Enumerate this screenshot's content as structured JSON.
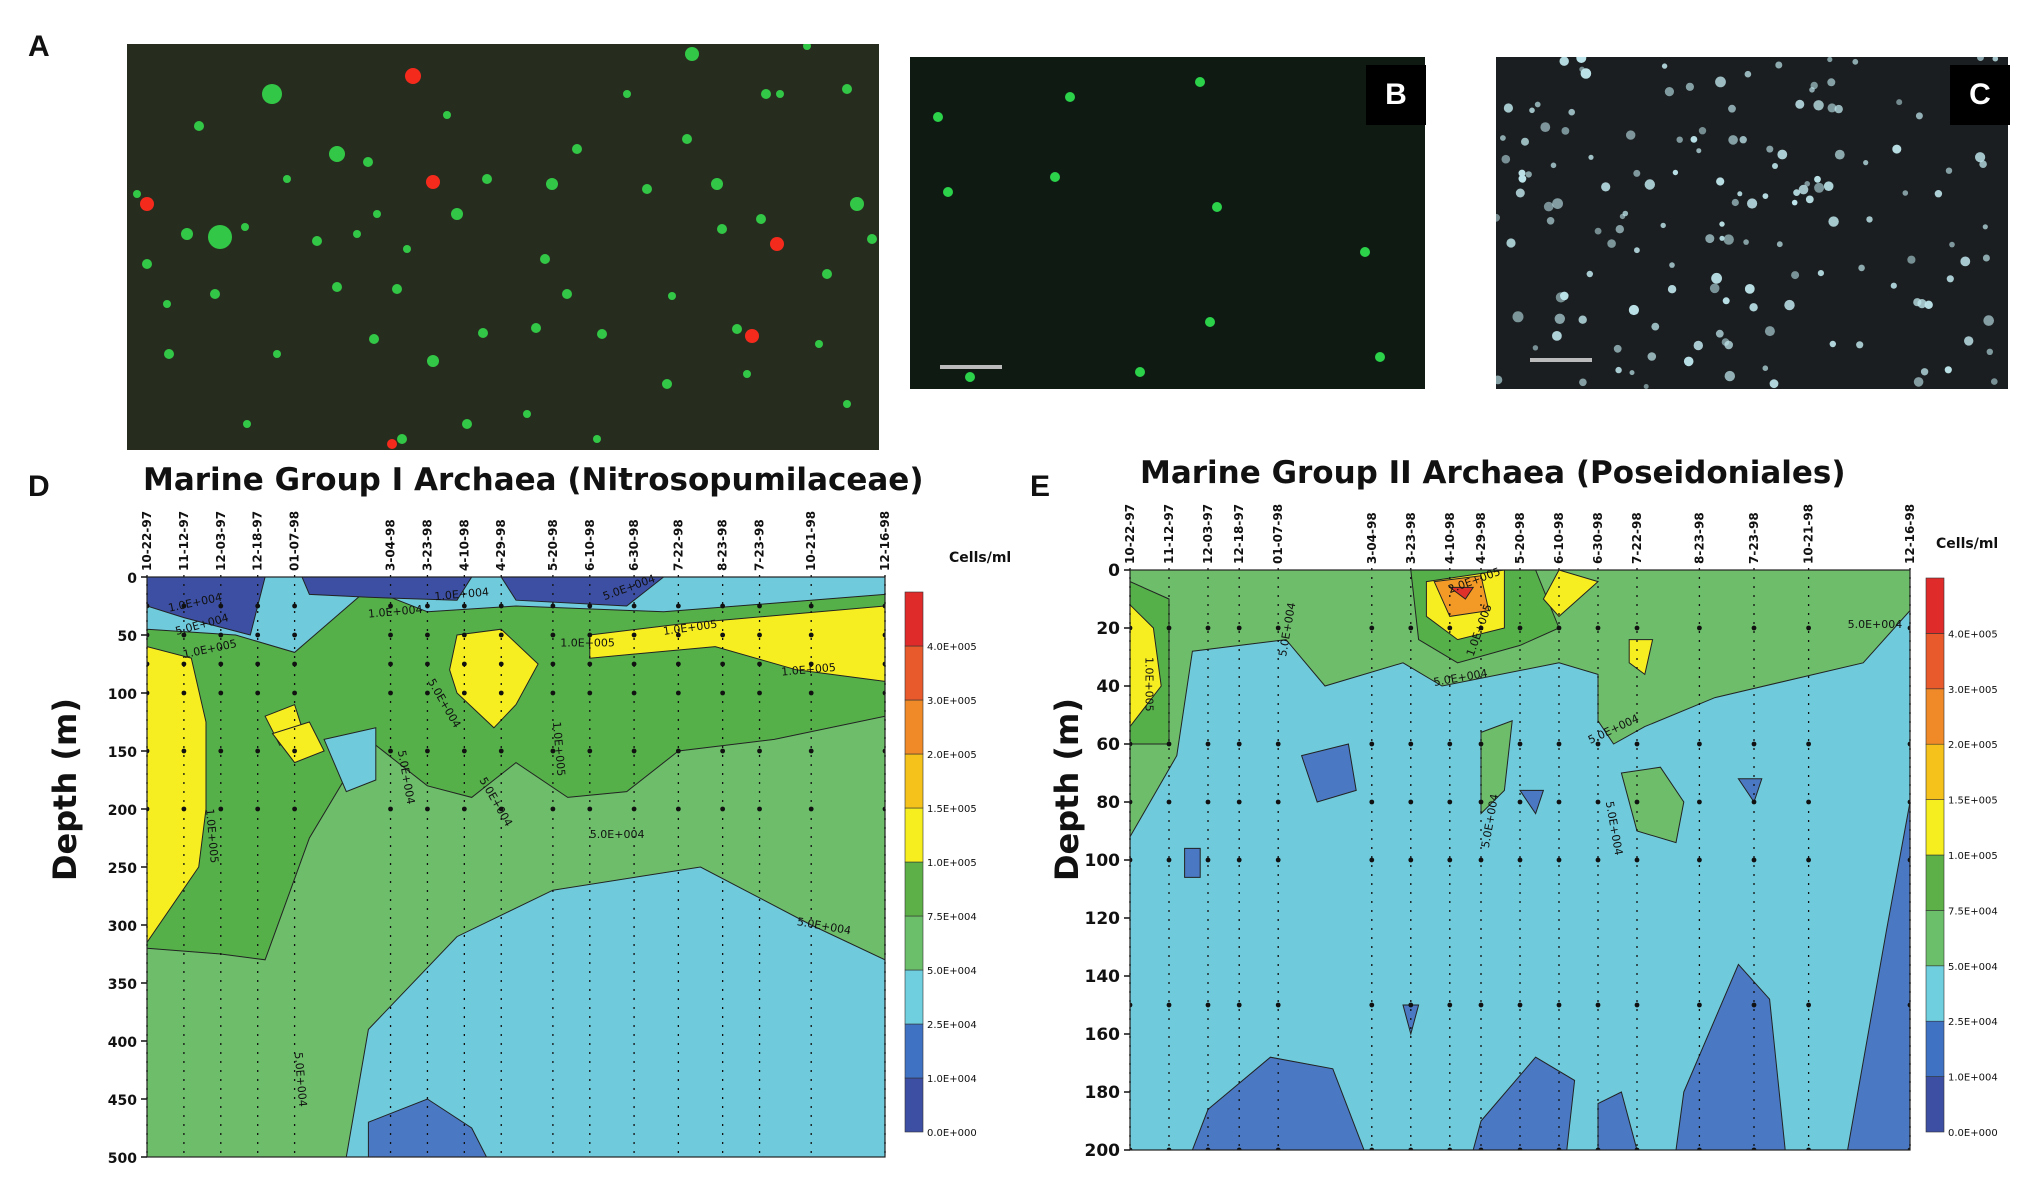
{
  "panels": {
    "A": "A",
    "B": "B",
    "C": "C",
    "D": "D",
    "E": "E"
  },
  "colors": {
    "scale": [
      "#3c4fa3",
      "#3f72c3",
      "#6fcfdf",
      "#6cbf6a",
      "#5db048",
      "#f6ee1e",
      "#f4c21b",
      "#f08a28",
      "#e85a2c",
      "#e02b2b"
    ],
    "dark_blue": "#3c4fa3",
    "mid_blue": "#4a78c2",
    "light_blue": "#6fcadb",
    "light_green": "#6dbd6b",
    "green": "#55b04a",
    "yellow": "#f7ee22",
    "orange": "#f39a26",
    "red": "#e0302a"
  },
  "chart_data": [
    {
      "type": "heatmap",
      "panel": "D",
      "title": "Marine Group I Archaea  (Nitrosopumilaceae)",
      "ylabel": "Depth (m)",
      "legend_title": "Cells/ml",
      "dates": [
        "10-22-97",
        "11-12-97",
        "12-03-97",
        "12-18-97",
        "01-07-98",
        "3-04-98",
        "3-23-98",
        "4-10-98",
        "4-29-98",
        "5-20-98",
        "6-10-98",
        "6-30-98",
        "7-22-98",
        "8-23-98",
        "7-23-98",
        "10-21-98",
        "12-16-98"
      ],
      "depth_ticks": [
        "0",
        "50",
        "100",
        "150",
        "200",
        "250",
        "300",
        "350",
        "400",
        "450",
        "500"
      ],
      "ylim": [
        0,
        500
      ],
      "colorbar_labels": [
        "0.0E+000",
        "1.0E+004",
        "2.5E+004",
        "5.0E+004",
        "7.5E+004",
        "1.0E+005",
        "1.5E+005",
        "2.0E+005",
        "3.0E+005",
        "4.0E+005"
      ],
      "contour_labels": [
        "1.0E+004",
        "5.0E+004",
        "1.0E+005",
        "1.0E+004",
        "5.0E+004",
        "1.0E+005",
        "5.0E+004",
        "5.0E+004",
        "1.0E+005",
        "1.0E+005",
        "1.0E+005",
        "1.0E+005",
        "5.0E+004",
        "1.0E+004",
        "5.0E+004",
        "5.0E+004",
        "5.0E+004"
      ]
    },
    {
      "type": "heatmap",
      "panel": "E",
      "title": "Marine Group II Archaea (Poseidoniales)",
      "ylabel": "Depth (m)",
      "legend_title": "Cells/ml",
      "dates": [
        "10-22-97",
        "11-12-97",
        "12-03-97",
        "12-18-97",
        "01-07-98",
        "3-04-98",
        "3-23-98",
        "4-10-98",
        "4-29-98",
        "5-20-98",
        "6-10-98",
        "6-30-98",
        "7-22-98",
        "8-23-98",
        "7-23-98",
        "10-21-98",
        "12-16-98"
      ],
      "depth_ticks": [
        "0",
        "20",
        "40",
        "60",
        "80",
        "100",
        "120",
        "140",
        "160",
        "180",
        "200"
      ],
      "ylim": [
        0,
        200
      ],
      "colorbar_labels": [
        "0.0E+000",
        "1.0E+004",
        "2.5E+004",
        "5.0E+004",
        "7.5E+004",
        "1.0E+005",
        "1.5E+005",
        "2.0E+005",
        "3.0E+005",
        "4.0E+005"
      ],
      "contour_labels": [
        "1.0E+005",
        "5.0E+004",
        "2.0E+005",
        "1.0E+005",
        "5.0E+004",
        "5.0E+004",
        "5.0E+004",
        "5.0E+004",
        "5.0E+004"
      ]
    }
  ]
}
